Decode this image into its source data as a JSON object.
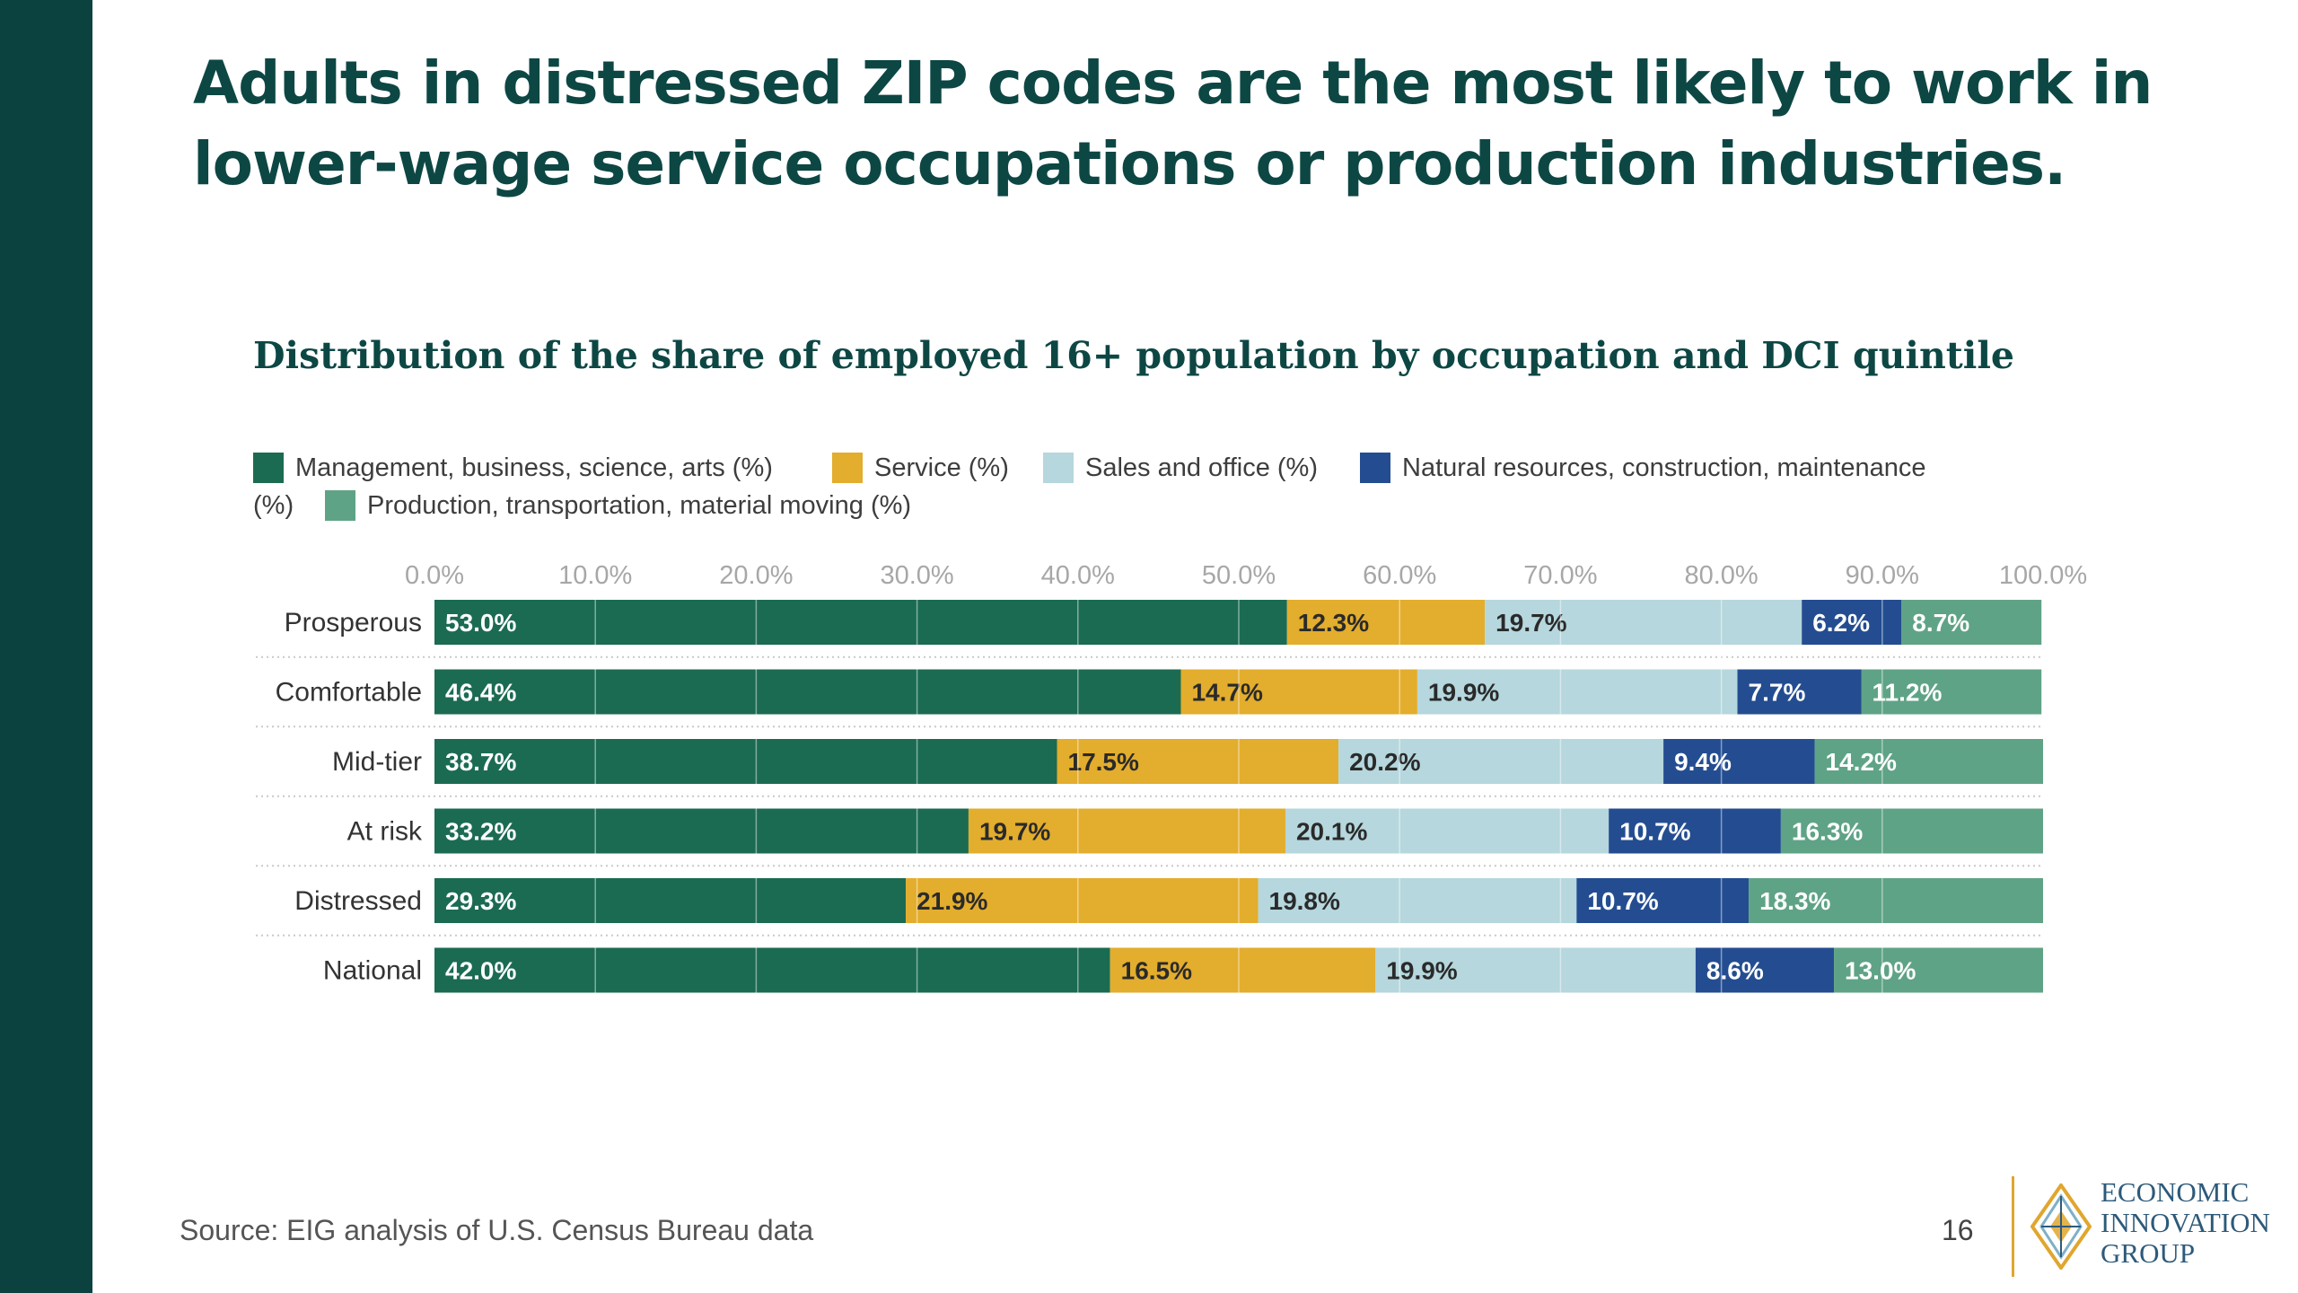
{
  "headline": {
    "line1": "Adults in distressed ZIP codes are the most likely to work in",
    "line2": "lower-wage service occupations or production industries."
  },
  "chart_data": {
    "type": "bar",
    "orientation": "horizontal",
    "stacked": true,
    "title": "Distribution of the share of employed 16+ population by occupation and DCI quintile",
    "xlabel": "",
    "ylabel": "",
    "xlim": [
      0,
      100
    ],
    "x_ticks": [
      "0.0%",
      "10.0%",
      "20.0%",
      "30.0%",
      "40.0%",
      "50.0%",
      "60.0%",
      "70.0%",
      "80.0%",
      "90.0%",
      "100.0%"
    ],
    "grid": true,
    "legend_position": "top",
    "categories": [
      "Prosperous",
      "Comfortable",
      "Mid-tier",
      "At risk",
      "Distressed",
      "National"
    ],
    "series": [
      {
        "name": "Management, business, science, arts (%)",
        "color": "#1b6b52",
        "label_color": "#ffffff",
        "values": [
          53.0,
          46.4,
          38.7,
          33.2,
          29.3,
          42.0
        ]
      },
      {
        "name": "Service (%)",
        "color": "#e3ad2d",
        "label_color": "#2a2a2a",
        "values": [
          12.3,
          14.7,
          17.5,
          19.7,
          21.9,
          16.5
        ]
      },
      {
        "name": "Sales and office (%)",
        "color": "#b5d7dd",
        "label_color": "#2a2a2a",
        "values": [
          19.7,
          19.9,
          20.2,
          20.1,
          19.8,
          19.9
        ]
      },
      {
        "name": "Natural resources, construction, maintenance (%)",
        "color": "#244d91",
        "label_color": "#ffffff",
        "values": [
          6.2,
          7.7,
          9.4,
          10.7,
          10.7,
          8.6
        ]
      },
      {
        "name": "Production, transportation, material moving (%)",
        "color": "#5fa386",
        "label_color": "#ffffff",
        "values": [
          8.7,
          11.2,
          14.2,
          16.3,
          18.3,
          13.0
        ]
      }
    ]
  },
  "legend": {
    "item1": "Management, business, science, arts (%)",
    "item2": "Service (%)",
    "item3": "Sales and office (%)",
    "item4": "Natural resources, construction, maintenance",
    "item4_tail": "(%)",
    "item5": "Production, transportation, material moving (%)"
  },
  "footer": {
    "source": "Source: EIG analysis of U.S. Census Bureau data",
    "page_number": "16"
  },
  "logo": {
    "line1": "ECONOMIC",
    "line2": "INNOVATION",
    "line3": "GROUP"
  },
  "colors": {
    "sidebar": "#0b4240",
    "headline": "#0d4744",
    "logo_accent": "#e0a62e"
  }
}
